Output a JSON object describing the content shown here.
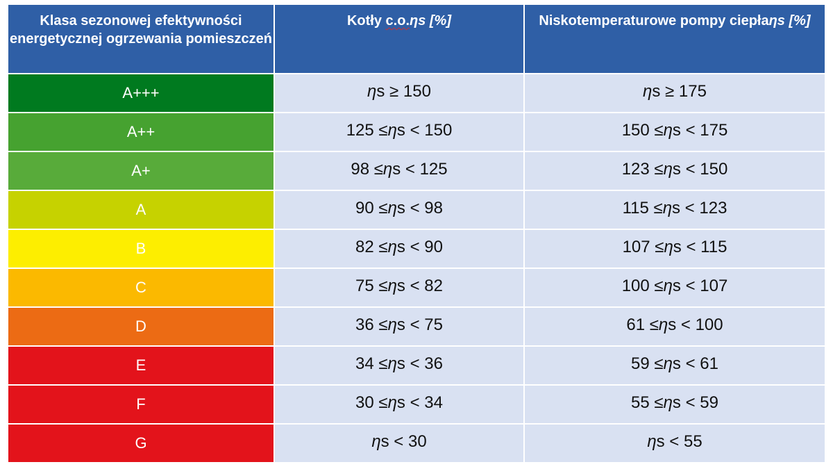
{
  "header": {
    "col1": "Klasa sezonowej efektywności energetycznej ogrzewania pomieszczeń",
    "col2_title_prefix": "Kotły ",
    "col2_title_underlined": "c.o.",
    "col2_unit": "ηs [%]",
    "col3_title": "Niskotemperaturowe pompy ciepła",
    "col3_unit": "ηs [%]"
  },
  "rows": [
    {
      "klass": "A+++",
      "color": "#007a1f",
      "boilers": "ηs ≥ 150",
      "heat_pumps": "ηs ≥ 175"
    },
    {
      "klass": "A++",
      "color": "#46a230",
      "boilers": "125 ≤ ηs < 150",
      "heat_pumps": "150 ≤ ηs < 175"
    },
    {
      "klass": "A+",
      "color": "#58ab3a",
      "boilers": "98 ≤ ηs < 125",
      "heat_pumps": "123 ≤ ηs < 150"
    },
    {
      "klass": "A",
      "color": "#c6d200",
      "boilers": "90 ≤ ηs < 98",
      "heat_pumps": "115 ≤ ηs < 123"
    },
    {
      "klass": "B",
      "color": "#fdee00",
      "boilers": "82 ≤ ηs < 90",
      "heat_pumps": "107 ≤ ηs < 115"
    },
    {
      "klass": "C",
      "color": "#fbb900",
      "boilers": "75 ≤ ηs < 82",
      "heat_pumps": "100 ≤ ηs < 107"
    },
    {
      "klass": "D",
      "color": "#ec6b14",
      "boilers": "36 ≤ ηs < 75",
      "heat_pumps": "61 ≤ ηs < 100"
    },
    {
      "klass": "E",
      "color": "#e3131b",
      "boilers": "34 ≤ ηs < 36",
      "heat_pumps": "59 ≤ ηs < 61"
    },
    {
      "klass": "F",
      "color": "#e3131b",
      "boilers": "30 ≤ ηs < 34",
      "heat_pumps": "55 ≤ ηs < 59"
    },
    {
      "klass": "G",
      "color": "#e3131b",
      "boilers": "ηs < 30",
      "heat_pumps": "ηs < 55"
    }
  ]
}
